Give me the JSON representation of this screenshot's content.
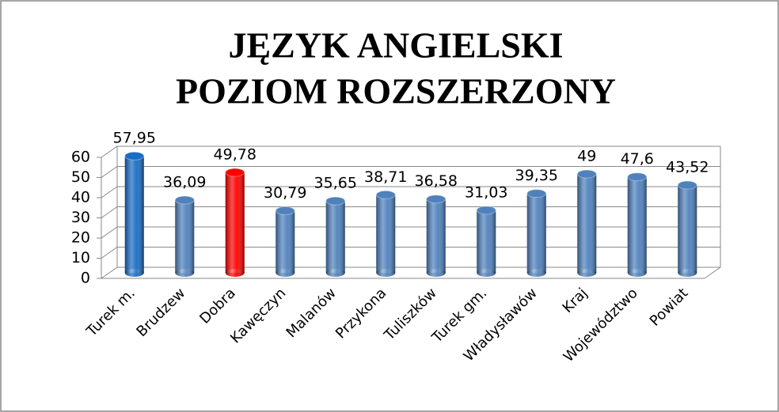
{
  "chart_data": {
    "type": "bar",
    "title": [
      "JĘZYK ANGIELSKI",
      "POZIOM ROZSZERZONY"
    ],
    "categories": [
      "Turek m.",
      "Brudzew",
      "Dobra",
      "Kawęczyn",
      "Malanów",
      "Przykona",
      "Tuliszków",
      "Turek gm.",
      "Władysławów",
      "Kraj",
      "Województwo",
      "Powiat"
    ],
    "values": [
      57.95,
      36.09,
      49.78,
      30.79,
      35.65,
      38.71,
      36.58,
      31.03,
      39.35,
      49,
      47.6,
      43.52
    ],
    "value_labels": [
      "57,95",
      "36,09",
      "49,78",
      "30,79",
      "35,65",
      "38,71",
      "36,58",
      "31,03",
      "39,35",
      "49",
      "47,6",
      "43,52"
    ],
    "colors": [
      "#1a6cc4",
      "#4f81bd",
      "#ff0000",
      "#4f81bd",
      "#4f81bd",
      "#4f81bd",
      "#4f81bd",
      "#4f81bd",
      "#4f81bd",
      "#4f81bd",
      "#4f81bd",
      "#4f81bd"
    ],
    "ylim": [
      0,
      60
    ],
    "yticks": [
      0,
      10,
      20,
      30,
      40,
      50,
      60
    ],
    "grid": true
  }
}
